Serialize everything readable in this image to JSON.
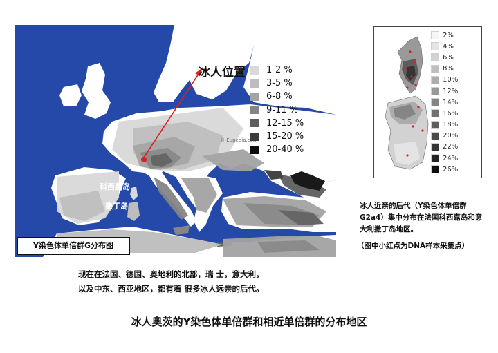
{
  "main_map": {
    "caption": "Y染色体单倍群G分布图",
    "iceman_label": "冰人位置",
    "watermark": "© Eupedia.com",
    "corsica_label": "科西嘉岛",
    "sardinia_label": "撒丁岛",
    "legend": [
      {
        "label": "1-2 %",
        "color": "#d9d9d9"
      },
      {
        "label": "3-5 %",
        "color": "#bdbdbd"
      },
      {
        "label": "6-8 %",
        "color": "#a3a3a3"
      },
      {
        "label": "9-11 %",
        "color": "#858585"
      },
      {
        "label": "12-15 %",
        "color": "#5e5e5e"
      },
      {
        "label": "15-20 %",
        "color": "#3b3b3b"
      },
      {
        "label": "20-40 %",
        "color": "#0d0d0d"
      }
    ],
    "colors": {
      "sea": "#2449a8",
      "land_low": "#ffffff",
      "marker": "#e01e1e"
    }
  },
  "inset_map": {
    "legend": [
      {
        "label": "2%",
        "color": "#f6f6f6"
      },
      {
        "label": "4%",
        "color": "#e4e4e4"
      },
      {
        "label": "6%",
        "color": "#d2d2d2"
      },
      {
        "label": "8%",
        "color": "#bfbfbf"
      },
      {
        "label": "10%",
        "color": "#acacac"
      },
      {
        "label": "12%",
        "color": "#999999"
      },
      {
        "label": "14%",
        "color": "#858585"
      },
      {
        "label": "16%",
        "color": "#717171"
      },
      {
        "label": "18%",
        "color": "#5d5d5d"
      },
      {
        "label": "20%",
        "color": "#494949"
      },
      {
        "label": "22%",
        "color": "#353535"
      },
      {
        "label": "24%",
        "color": "#222222"
      },
      {
        "label": "26%",
        "color": "#0e0e0e"
      }
    ]
  },
  "inset_note": "冰人近亲的后代（Y染色体单倍群G2a4）集中分布在法国科西嘉岛和意大利撒丁岛地区。",
  "inset_note2": "（图中小红点为DNA样本采集点）",
  "description": {
    "line1": "现在在法国、德国、奥地利的北部，瑞 士，意大利，",
    "line2": "以及中东、西亚地区，都有着 很多冰人远亲的后代。"
  },
  "title": "冰人奥茨的Y染色体单倍群和相近单倍群的分布地区"
}
